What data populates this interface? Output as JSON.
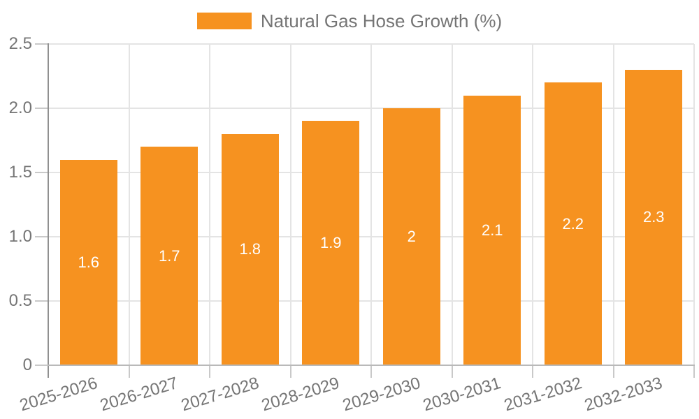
{
  "chart_data": {
    "type": "bar",
    "title": "Natural Gas Hose Growth (%)",
    "legend": {
      "label": "Natural Gas Hose Growth (%)",
      "position": "top-center"
    },
    "categories": [
      "2025-2026",
      "2026-2027",
      "2027-2028",
      "2028-2029",
      "2029-2030",
      "2030-2031",
      "2031-2032",
      "2032-2033"
    ],
    "values": [
      1.6,
      1.7,
      1.8,
      1.9,
      2,
      2.1,
      2.2,
      2.3
    ],
    "bar_labels": [
      "1.6",
      "1.7",
      "1.8",
      "1.9",
      "2",
      "2.1",
      "2.2",
      "2.3"
    ],
    "xlabel": "",
    "ylabel": "",
    "ylim": [
      0,
      2.5
    ],
    "yticks": [
      {
        "value": 0,
        "label": "0"
      },
      {
        "value": 0.5,
        "label": "0.5"
      },
      {
        "value": 1,
        "label": "1.0"
      },
      {
        "value": 1.5,
        "label": "1.5"
      },
      {
        "value": 2,
        "label": "2.0"
      },
      {
        "value": 2.5,
        "label": "2.5"
      }
    ],
    "grid": true,
    "colors": {
      "bar": "#F69220",
      "bar_label": "#FFFFFF",
      "grid": "#E4E4E4",
      "y_axis": "#909090",
      "x_axis": "#B9B9B9",
      "tick": "#C9C9C9",
      "text": "#757575",
      "background": "#FFFFFF"
    }
  }
}
